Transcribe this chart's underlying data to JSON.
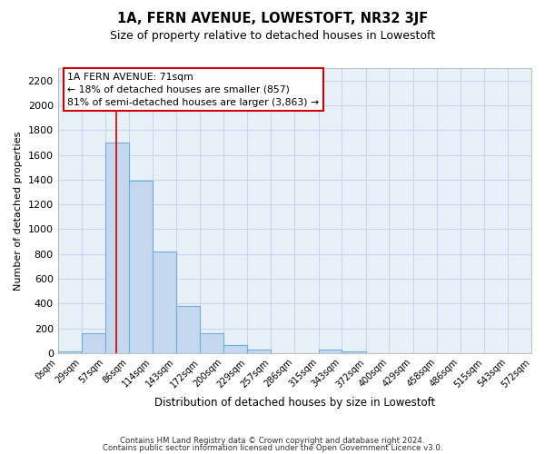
{
  "title": "1A, FERN AVENUE, LOWESTOFT, NR32 3JF",
  "subtitle": "Size of property relative to detached houses in Lowestoft",
  "xlabel": "Distribution of detached houses by size in Lowestoft",
  "ylabel": "Number of detached properties",
  "bar_color": "#c5d8f0",
  "bar_edge_color": "#6baed6",
  "grid_color": "#c8d8ea",
  "background_color": "#e8f0f8",
  "bin_edges": [
    0,
    29,
    57,
    86,
    114,
    143,
    172,
    200,
    229,
    257,
    286,
    315,
    343,
    372,
    400,
    429,
    458,
    486,
    515,
    543,
    572
  ],
  "bin_labels": [
    "0sqm",
    "29sqm",
    "57sqm",
    "86sqm",
    "114sqm",
    "143sqm",
    "172sqm",
    "200sqm",
    "229sqm",
    "257sqm",
    "286sqm",
    "315sqm",
    "343sqm",
    "372sqm",
    "400sqm",
    "429sqm",
    "458sqm",
    "486sqm",
    "515sqm",
    "543sqm",
    "572sqm"
  ],
  "bar_heights": [
    10,
    160,
    1700,
    1390,
    820,
    380,
    160,
    65,
    30,
    0,
    0,
    25,
    10,
    0,
    0,
    0,
    0,
    0,
    0,
    0
  ],
  "ylim": [
    0,
    2300
  ],
  "yticks": [
    0,
    200,
    400,
    600,
    800,
    1000,
    1200,
    1400,
    1600,
    1800,
    2000,
    2200
  ],
  "property_line_x": 71,
  "property_line_color": "#cc0000",
  "ann_line1": "1A FERN AVENUE: 71sqm",
  "ann_line2": "← 18% of detached houses are smaller (857)",
  "ann_line3": "81% of semi-detached houses are larger (3,863) →",
  "footer_line1": "Contains HM Land Registry data © Crown copyright and database right 2024.",
  "footer_line2": "Contains public sector information licensed under the Open Government Licence v3.0."
}
